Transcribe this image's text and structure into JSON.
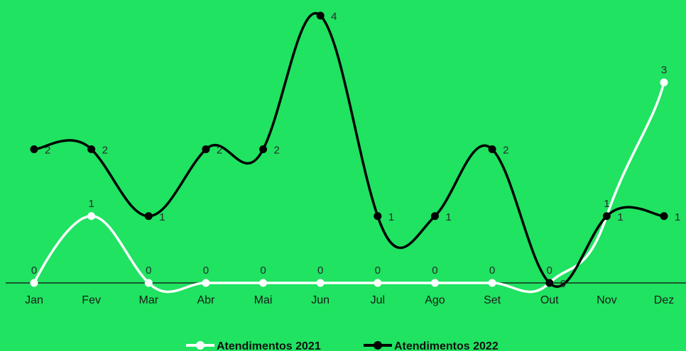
{
  "chart_data": {
    "type": "line",
    "categories": [
      "Jan",
      "Fev",
      "Mar",
      "Abr",
      "Mai",
      "Jun",
      "Jul",
      "Ago",
      "Set",
      "Out",
      "Nov",
      "Dez"
    ],
    "series": [
      {
        "name": "Atendimentos 2021",
        "values": [
          0,
          1,
          0,
          0,
          0,
          0,
          0,
          0,
          0,
          0,
          1,
          3
        ],
        "color": "#ffffff"
      },
      {
        "name": "Atendimentos 2022",
        "values": [
          2,
          2,
          1,
          2,
          2,
          4,
          1,
          1,
          2,
          0,
          1,
          1
        ],
        "color": "#000000"
      }
    ],
    "ylim": [
      0,
      4
    ],
    "grid": false,
    "legend": "bottom-center",
    "background": "#1fe361",
    "smooth": true
  }
}
